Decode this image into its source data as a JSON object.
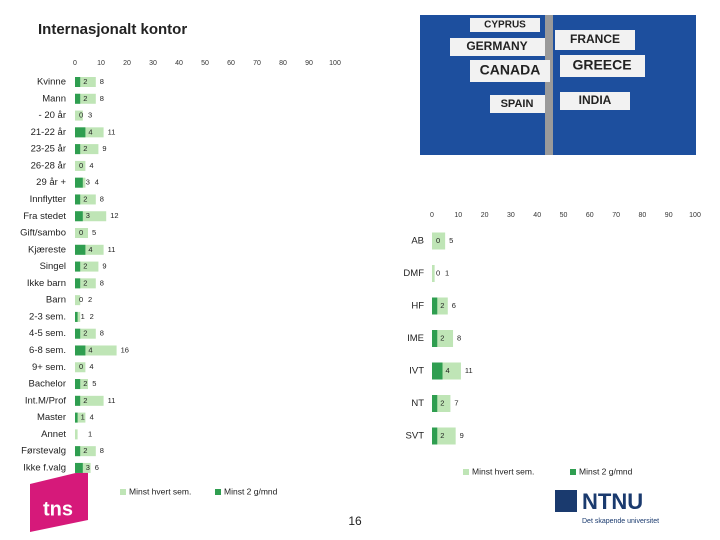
{
  "chart_data": [
    {
      "type": "bar",
      "orientation": "horizontal",
      "title": "Internasjonalt kontor",
      "categories": [
        "Kvinne",
        "Mann",
        "- 20 år",
        "21-22 år",
        "23-25 år",
        "26-28 år",
        "29 år +",
        "Innflytter",
        "Fra stedet",
        "Gift/sambo",
        "Kjæreste",
        "Singel",
        "Ikke barn",
        "Barn",
        "2-3 sem.",
        "4-5 sem.",
        "6-8 sem.",
        "9+ sem.",
        "Bachelor",
        "Int.M/Prof",
        "Master",
        "Annet",
        "Førstevalg",
        "Ikke f.valg"
      ],
      "series": [
        {
          "name": "Minst hvert sem.",
          "color": "#bfe5b6",
          "values": [
            8,
            8,
            3,
            11,
            9,
            4,
            4,
            8,
            12,
            5,
            11,
            9,
            8,
            2,
            2,
            8,
            16,
            4,
            5,
            11,
            4,
            1,
            8,
            6
          ]
        },
        {
          "name": "Minst 2 g/mnd",
          "color": "#2f9e50",
          "values": [
            2,
            2,
            0,
            4,
            2,
            0,
            3,
            2,
            3,
            0,
            4,
            2,
            2,
            0,
            1,
            2,
            4,
            0,
            2,
            2,
            1,
            null,
            2,
            3
          ]
        }
      ],
      "xlim": [
        0,
        100
      ],
      "xticks": [
        0,
        10,
        20,
        30,
        40,
        50,
        60,
        70,
        80,
        90,
        100
      ]
    },
    {
      "type": "bar",
      "orientation": "horizontal",
      "categories": [
        "AB",
        "DMF",
        "HF",
        "IME",
        "IVT",
        "NT",
        "SVT"
      ],
      "series": [
        {
          "name": "Minst hvert sem.",
          "color": "#bfe5b6",
          "values": [
            5,
            1,
            6,
            8,
            11,
            7,
            9
          ]
        },
        {
          "name": "Minst 2 g/mnd",
          "color": "#2f9e50",
          "values": [
            0,
            0,
            2,
            2,
            4,
            2,
            2
          ]
        }
      ],
      "xlim": [
        0,
        100
      ],
      "xticks": [
        0,
        10,
        20,
        30,
        40,
        50,
        60,
        70,
        80,
        90,
        100
      ]
    }
  ],
  "page_number": "16",
  "logos": {
    "left": "tns",
    "right": "NTNU",
    "right_tagline": "Det skapende universitet"
  },
  "photo_signs": [
    "CYPRUS",
    "GERMANY",
    "FRANCE",
    "CANADA",
    "GREECE",
    "SPAIN",
    "INDIA"
  ]
}
